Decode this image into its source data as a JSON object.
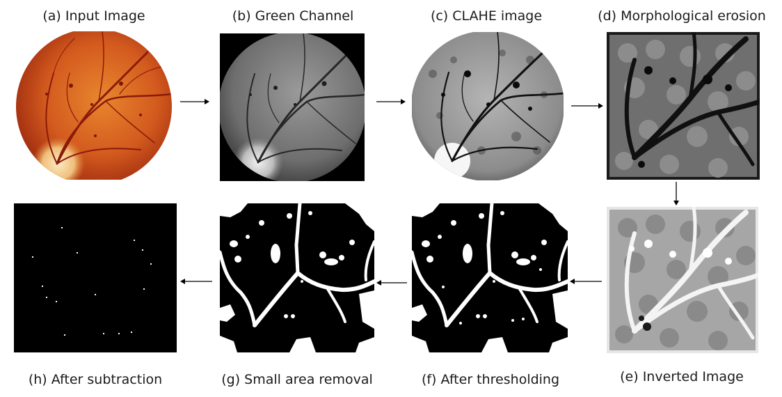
{
  "panels": {
    "a": {
      "label": "(a) Input Image",
      "image": "retina-fundus-color"
    },
    "b": {
      "label": "(b) Green Channel",
      "image": "retina-green-channel"
    },
    "c": {
      "label": "(c) CLAHE image",
      "image": "retina-clahe"
    },
    "d": {
      "label": "(d) Morphological erosion",
      "image": "retina-erosion"
    },
    "e": {
      "label": "(e) Inverted Image",
      "image": "retina-inverted"
    },
    "f": {
      "label": "(f) After thresholding",
      "image": "binary-threshold"
    },
    "g": {
      "label": "(g) Small area removal",
      "image": "binary-area-removed"
    },
    "h": {
      "label": "(h) After subtraction",
      "image": "binary-subtraction-dots"
    }
  },
  "colors": {
    "fundus_red": "#c8461c",
    "fundus_orange": "#e07a2e",
    "fundus_disc": "#f3d9a8",
    "gray_mid": "#8a8a8a",
    "black": "#000000",
    "white": "#ffffff"
  }
}
